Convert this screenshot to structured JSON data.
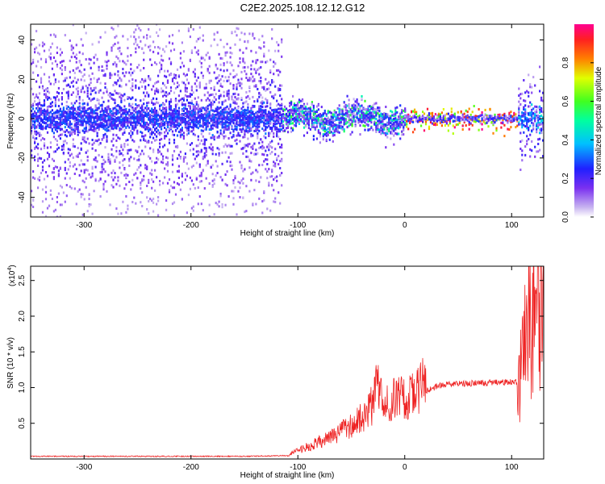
{
  "title": "C2E2.2025.108.12.12.G12",
  "chart_data": [
    {
      "type": "heatmap",
      "xlabel": "Height of straight line (km)",
      "ylabel": "Frequency (Hz)",
      "xlim": [
        -350,
        130
      ],
      "ylim": [
        -50,
        48
      ],
      "xticks": [
        "-300",
        "-200",
        "-100",
        "0",
        "100"
      ],
      "yticks": [
        "40",
        "20",
        "0",
        "-20",
        "-40"
      ],
      "colorbar": {
        "label": "Normalized spectral amplitude",
        "range": [
          0,
          1
        ],
        "ticks": [
          "0.0",
          "0.2",
          "0.4",
          "0.6",
          "0.8"
        ],
        "colormap": "rainbow"
      },
      "description_regions": [
        {
          "x": [
            -350,
            -115
          ],
          "freq_spread": 48,
          "core_amplitude": 0.3
        },
        {
          "x": [
            -115,
            0
          ],
          "freq_spread": 8,
          "core_amplitude": 0.55
        },
        {
          "x": [
            0,
            105
          ],
          "freq_spread": 2,
          "core_amplitude": 0.95
        },
        {
          "x": [
            105,
            130
          ],
          "freq_spread": 20,
          "core_amplitude": 0.4
        }
      ]
    },
    {
      "type": "line",
      "xlabel": "Height of straight line (km)",
      "ylabel": "SNR (10 * v/v)",
      "yscale_label": "(x10",
      "yscale_exp": "4",
      "xlim": [
        -350,
        130
      ],
      "ylim": [
        0,
        27000
      ],
      "xticks": [
        "-300",
        "-200",
        "-100",
        "0",
        "100"
      ],
      "yticks": [
        "0.5",
        "1.0",
        "1.5",
        "2.0",
        "2.5"
      ],
      "series": [
        {
          "color": "#ee2222",
          "x": [
            -350,
            -300,
            -250,
            -200,
            -150,
            -110,
            -100,
            -90,
            -80,
            -70,
            -60,
            -50,
            -40,
            -30,
            -25,
            -20,
            -10,
            0,
            10,
            20,
            30,
            40,
            50,
            60,
            70,
            80,
            90,
            100,
            105,
            110,
            115,
            120,
            125,
            130
          ],
          "y": [
            300,
            300,
            300,
            300,
            300,
            400,
            1000,
            1500,
            2000,
            2500,
            3200,
            4000,
            5000,
            6500,
            9000,
            6000,
            7000,
            7200,
            8000,
            9500,
            10200,
            10500,
            10500,
            10600,
            10600,
            10700,
            10700,
            10800,
            10800,
            14000,
            18000,
            22000,
            25000,
            20000
          ]
        }
      ]
    }
  ]
}
